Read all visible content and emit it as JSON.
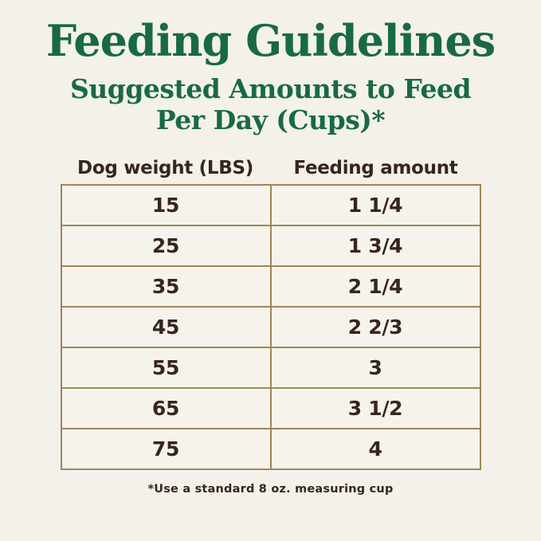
{
  "colors": {
    "background": "#f3f1ea",
    "heading_green": "#186a42",
    "text_dark": "#37251e",
    "table_border": "#a28557",
    "cell_background": "#f5f3ec"
  },
  "header": {
    "title": "Feeding Guidelines",
    "subtitle_line1": "Suggested Amounts to Feed",
    "subtitle_line2": "Per Day (Cups)*"
  },
  "table": {
    "column_headers": [
      "Dog weight (LBS)",
      "Feeding amount"
    ],
    "rows": [
      {
        "weight": "15",
        "amount": "1 1/4"
      },
      {
        "weight": "25",
        "amount": "1 3/4"
      },
      {
        "weight": "35",
        "amount": "2 1/4"
      },
      {
        "weight": "45",
        "amount": "2 2/3"
      },
      {
        "weight": "55",
        "amount": "3"
      },
      {
        "weight": "65",
        "amount": "3 1/2"
      },
      {
        "weight": "75",
        "amount": "4"
      }
    ]
  },
  "footnote": "*Use a standard 8 oz. measuring cup",
  "chart_data": {
    "type": "table",
    "title": "Feeding Guidelines",
    "subtitle": "Suggested Amounts to Feed Per Day (Cups)*",
    "columns": [
      "Dog weight (LBS)",
      "Feeding amount"
    ],
    "categories": [
      15,
      25,
      35,
      45,
      55,
      65,
      75
    ],
    "values": [
      "1 1/4",
      "1 3/4",
      "2 1/4",
      "2 2/3",
      "3",
      "3 1/2",
      "4"
    ],
    "footnote": "*Use a standard 8 oz. measuring cup",
    "layout": "two-column centered table, equal column widths, all cells center-aligned, tan 2px grid borders"
  }
}
